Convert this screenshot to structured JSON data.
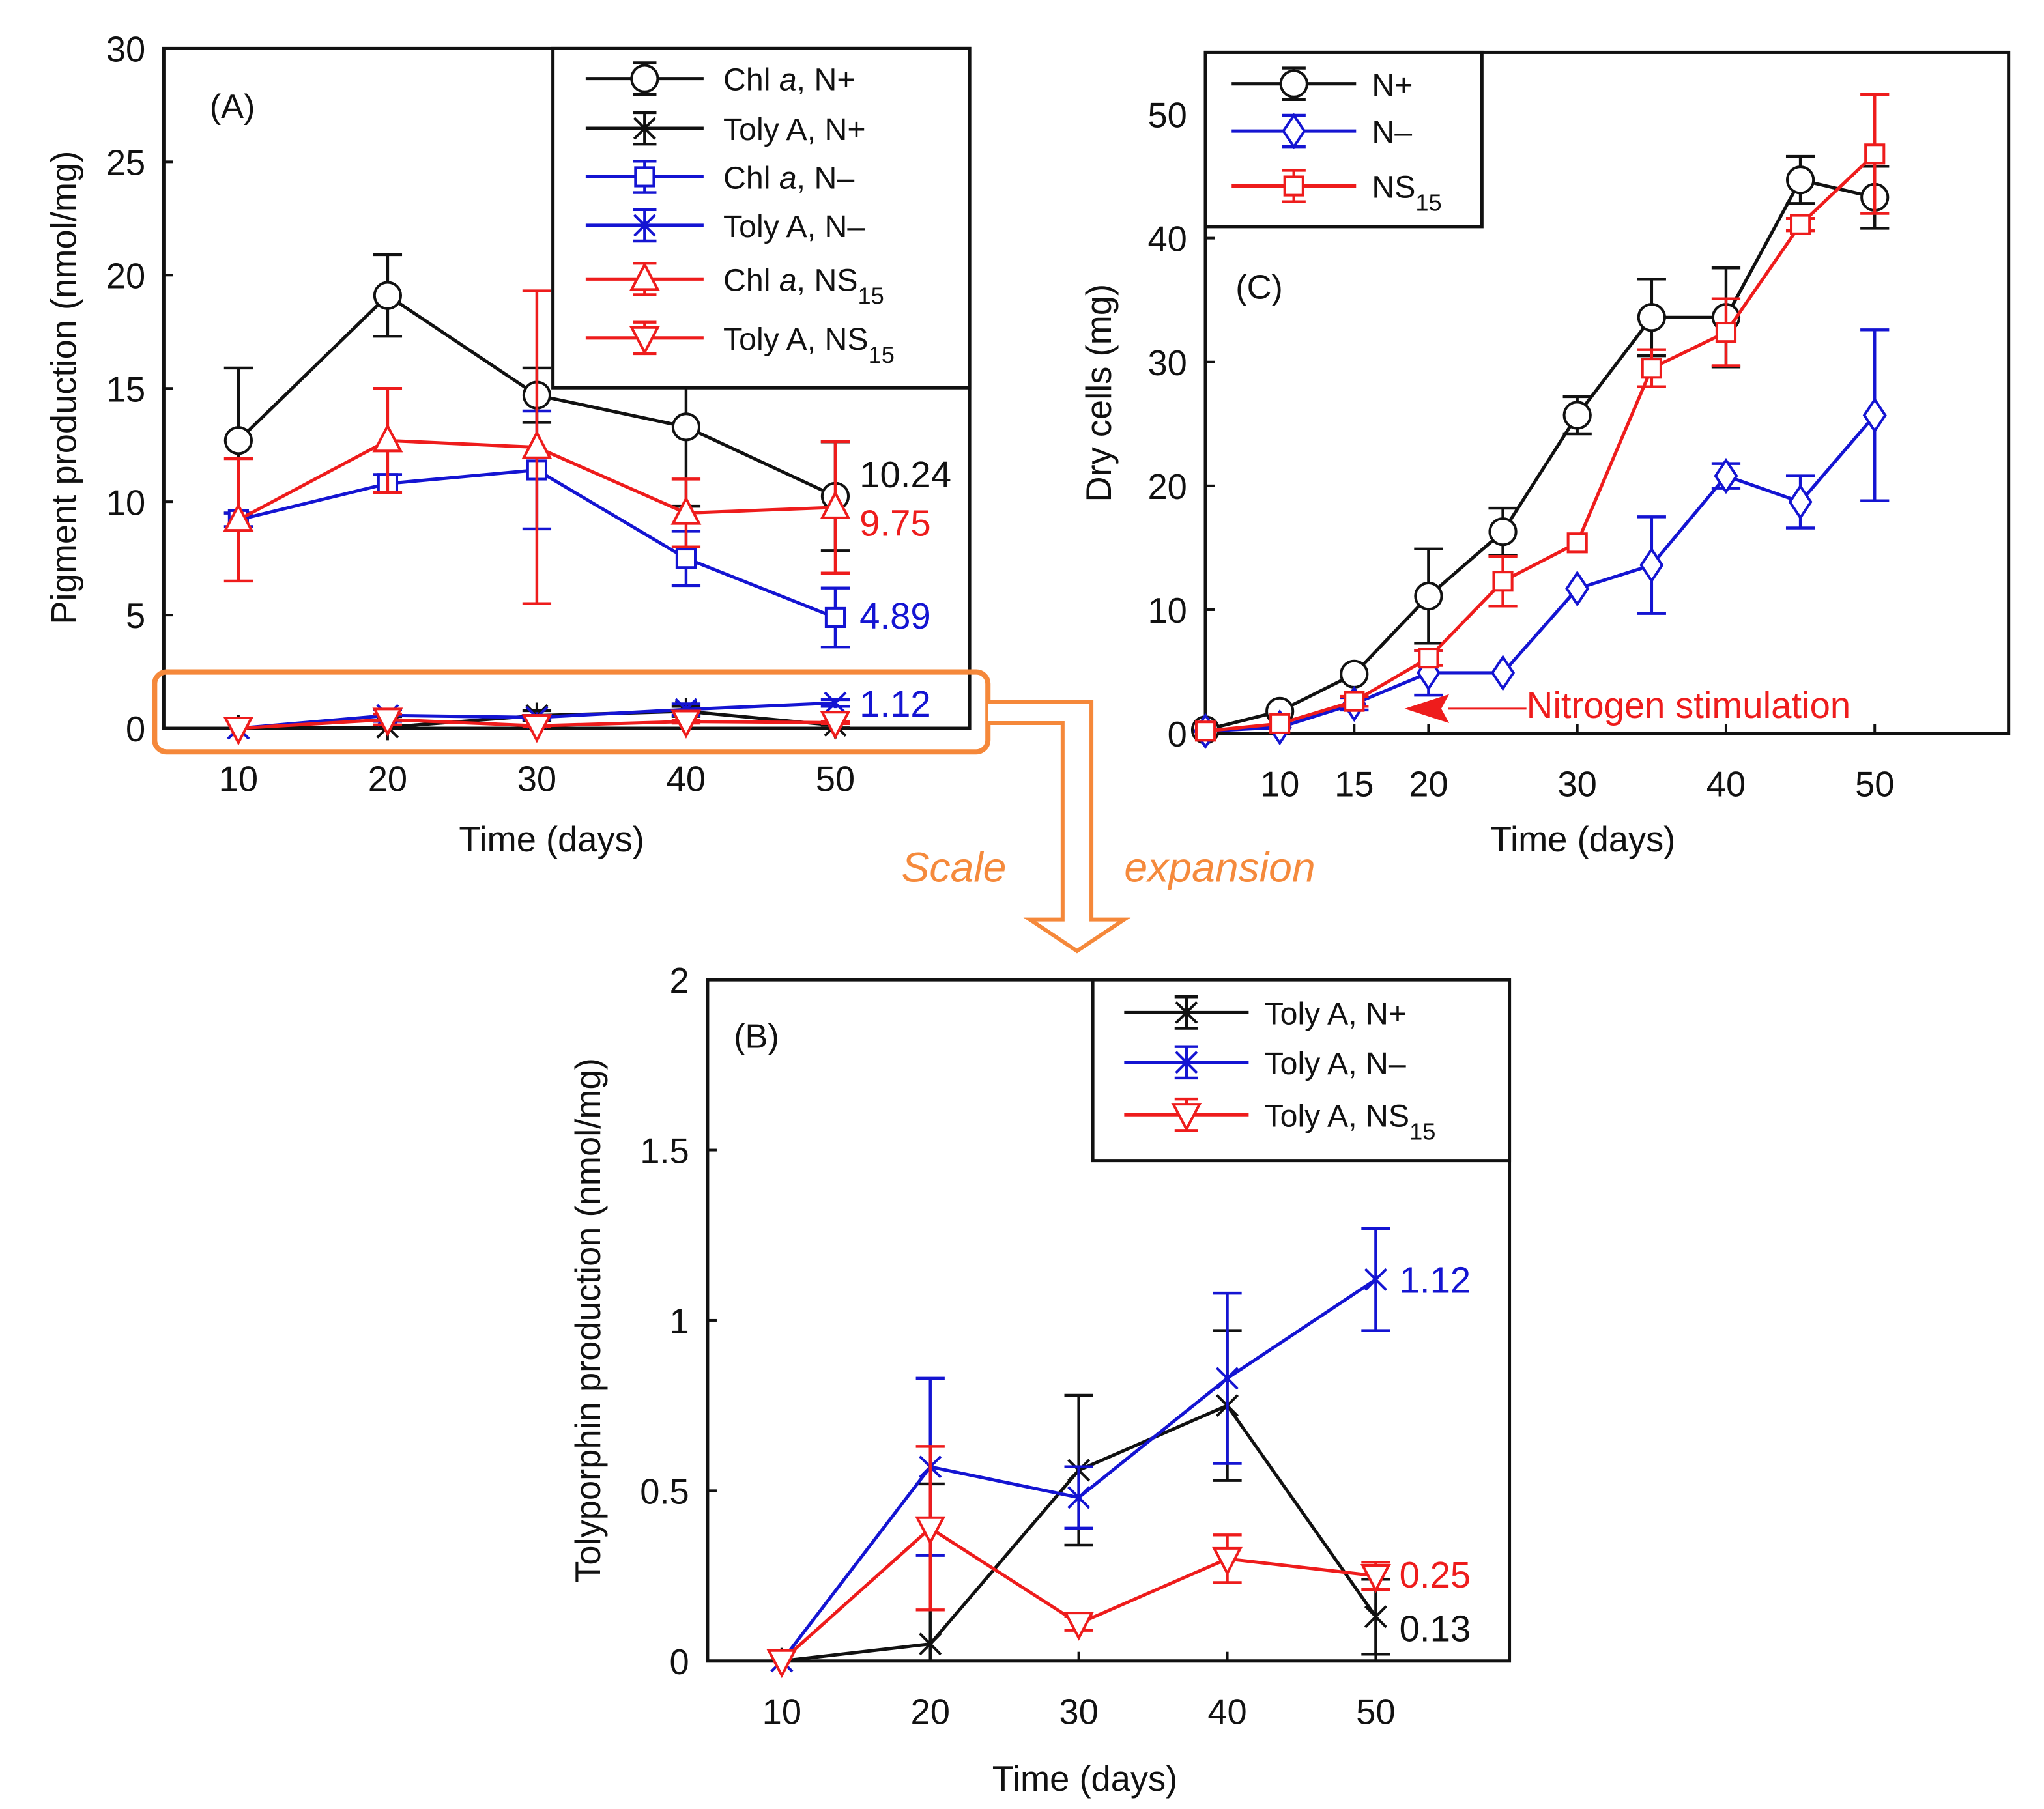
{
  "colors": {
    "black": "#111111",
    "blue": "#1414d2",
    "red": "#ee1c1c",
    "orange": "#f5883a"
  },
  "chart_data": [
    {
      "id": "A",
      "type": "line",
      "panel_label": "(A)",
      "xlabel": "Time (days)",
      "ylabel": "Pigment production (nmol/mg)",
      "xlim": [
        5,
        59
      ],
      "ylim": [
        0,
        30
      ],
      "xticks": [
        10,
        20,
        30,
        40,
        50
      ],
      "yticks": [
        0,
        5,
        10,
        15,
        20,
        25,
        30
      ],
      "legend_position": "top-right",
      "x": [
        10,
        20,
        30,
        40,
        50
      ],
      "series": [
        {
          "name": "Chl a, N+",
          "sub": "",
          "color": "black",
          "marker": "circle",
          "values": [
            12.7,
            19.1,
            14.7,
            13.3,
            10.24
          ],
          "errors": [
            3.2,
            1.8,
            1.2,
            3.5,
            2.4
          ]
        },
        {
          "name": "Toly A, N+",
          "sub": "",
          "color": "black",
          "marker": "asterisk",
          "values": [
            0,
            0.05,
            0.56,
            0.75,
            0.13
          ],
          "errors": [
            0,
            0.47,
            0.22,
            0.22,
            0.11
          ]
        },
        {
          "name": "Chl a, N–",
          "sub": "",
          "color": "blue",
          "marker": "square",
          "values": [
            9.2,
            10.8,
            11.4,
            7.5,
            4.89
          ],
          "errors": [
            0.3,
            0.4,
            2.6,
            1.2,
            1.3
          ]
        },
        {
          "name": "Toly A, N–",
          "sub": "",
          "color": "blue",
          "marker": "xstar",
          "values": [
            0,
            0.57,
            0.48,
            0.83,
            1.12
          ],
          "errors": [
            0,
            0.26,
            0.09,
            0.25,
            0.15
          ]
        },
        {
          "name": "Chl a, NS",
          "sub": "15",
          "color": "red",
          "marker": "triup",
          "values": [
            9.2,
            12.7,
            12.4,
            9.5,
            9.75
          ],
          "errors": [
            2.7,
            2.3,
            6.9,
            1.5,
            2.9
          ]
        },
        {
          "name": "Toly A, NS",
          "sub": "15",
          "color": "red",
          "marker": "tridown",
          "values": [
            0,
            0.39,
            0.11,
            0.3,
            0.25
          ],
          "errors": [
            0,
            0.24,
            0.02,
            0.07,
            0.04
          ]
        }
      ],
      "annotations": [
        "10.24",
        "9.75",
        "4.89",
        "1.12"
      ]
    },
    {
      "id": "C",
      "type": "line",
      "panel_label": "(C)",
      "xlabel": "Time (days)",
      "ylabel": "Dry cells (mg)",
      "xlim": [
        5,
        59
      ],
      "ylim": [
        0,
        55
      ],
      "xticks": [
        10,
        15,
        20,
        30,
        40,
        50
      ],
      "yticks": [
        0,
        10,
        20,
        30,
        40,
        50
      ],
      "legend_position": "top-left",
      "x": [
        5,
        10,
        15,
        20,
        25,
        30,
        35,
        40,
        45,
        50
      ],
      "series": [
        {
          "name": "N+",
          "sub": "",
          "color": "black",
          "marker": "circle",
          "values": [
            0.3,
            1.8,
            4.8,
            11.1,
            16.3,
            25.7,
            33.6,
            33.6,
            44.7,
            43.3
          ],
          "errors": [
            0,
            0,
            0,
            3.8,
            1.9,
            1.5,
            3.1,
            4.0,
            1.9,
            2.5
          ]
        },
        {
          "name": "N–",
          "sub": "",
          "color": "blue",
          "marker": "diamond",
          "values": [
            0.2,
            0.5,
            2.4,
            4.9,
            4.9,
            11.7,
            13.6,
            20.8,
            18.7,
            25.7
          ],
          "errors": [
            0,
            0,
            0.5,
            1.8,
            0,
            0,
            3.9,
            1.0,
            2.1,
            6.9
          ]
        },
        {
          "name": "NS",
          "sub": "15",
          "color": "red",
          "marker": "square",
          "values": [
            0.2,
            0.8,
            2.6,
            6.1,
            12.3,
            15.4,
            29.5,
            32.4,
            41.1,
            46.8
          ],
          "errors": [
            0,
            0,
            0.4,
            0.6,
            2.0,
            0,
            1.5,
            2.7,
            0.5,
            4.8
          ]
        }
      ],
      "annotations": [
        "Nitrogen stimulation"
      ]
    },
    {
      "id": "B",
      "type": "line",
      "panel_label": "(B)",
      "xlabel": "Time (days)",
      "ylabel": "Tolyporphin production (nmol/mg)",
      "xlim": [
        5,
        59
      ],
      "ylim": [
        0,
        2
      ],
      "xticks": [
        10,
        20,
        30,
        40,
        50
      ],
      "yticks": [
        0,
        0.5,
        1,
        1.5,
        2
      ],
      "legend_position": "top-right",
      "x": [
        10,
        20,
        30,
        40,
        50
      ],
      "series": [
        {
          "name": "Toly A, N+",
          "sub": "",
          "color": "black",
          "marker": "asterisk",
          "values": [
            0,
            0.05,
            0.56,
            0.75,
            0.13
          ],
          "errors": [
            0,
            0.47,
            0.22,
            0.22,
            0.11
          ]
        },
        {
          "name": "Toly A, N–",
          "sub": "",
          "color": "blue",
          "marker": "xstar",
          "values": [
            0,
            0.57,
            0.48,
            0.83,
            1.12
          ],
          "errors": [
            0,
            0.26,
            0.09,
            0.25,
            0.15
          ]
        },
        {
          "name": "Toly A, NS",
          "sub": "15",
          "color": "red",
          "marker": "tridown",
          "values": [
            0,
            0.39,
            0.11,
            0.3,
            0.25
          ],
          "errors": [
            0,
            0.24,
            0.02,
            0.07,
            0.04
          ]
        }
      ],
      "annotations": [
        "1.12",
        "0.25",
        "0.13"
      ]
    }
  ],
  "callout": {
    "word1": "Scale",
    "word2": "expansion"
  }
}
